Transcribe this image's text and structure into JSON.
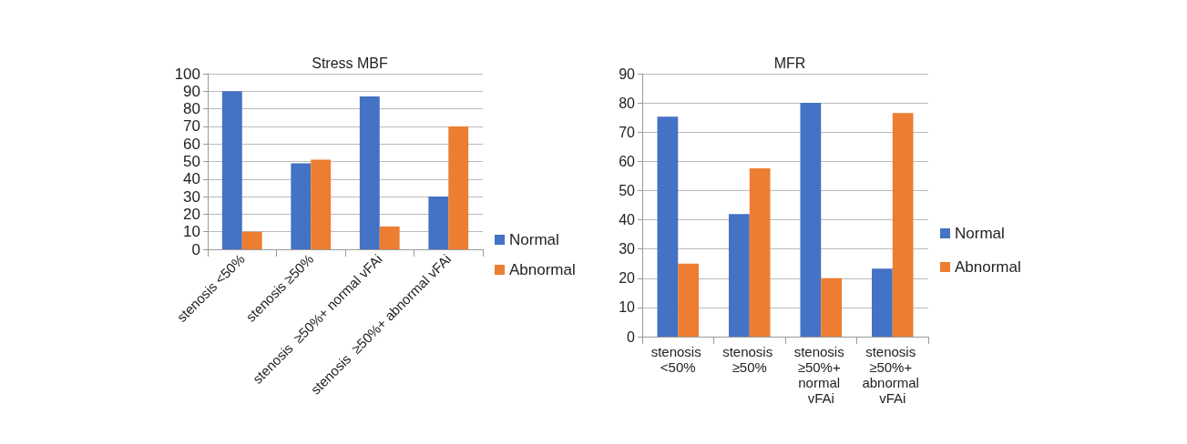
{
  "chart_data": [
    {
      "type": "bar",
      "title": "Stress MBF",
      "categories": [
        "stenosis <50%",
        "stenosis ≥50%",
        "stenosis  ≥50%+ normal vFAi",
        "stenosis  ≥50%+ abnormal vFAi"
      ],
      "series": [
        {
          "name": "Normal",
          "color": "#4472c4",
          "values": [
            90,
            49,
            87,
            30
          ]
        },
        {
          "name": "Abnormal",
          "color": "#ed7d31",
          "values": [
            10,
            51,
            13,
            70
          ]
        }
      ],
      "ylim": [
        0,
        100
      ],
      "yticks": [
        0,
        10,
        20,
        30,
        40,
        50,
        60,
        70,
        80,
        90,
        100
      ],
      "grid": "y",
      "legend": "right"
    },
    {
      "type": "bar",
      "title": "MFR",
      "categories": [
        "stenosis <50%",
        "stenosis ≥50%",
        "stenosis ≥50%+ normal vFAi",
        "stenosis ≥50%+ abnormal vFAi"
      ],
      "series": [
        {
          "name": "Normal",
          "color": "#4472c4",
          "values": [
            75.3,
            42,
            80,
            23.3
          ]
        },
        {
          "name": "Abnormal",
          "color": "#ed7d31",
          "values": [
            25,
            57.6,
            20,
            76.5
          ]
        }
      ],
      "ylim": [
        0,
        90
      ],
      "yticks": [
        0,
        10,
        20,
        30,
        40,
        50,
        60,
        70,
        80,
        90
      ],
      "grid": "y",
      "legend": "right"
    }
  ]
}
